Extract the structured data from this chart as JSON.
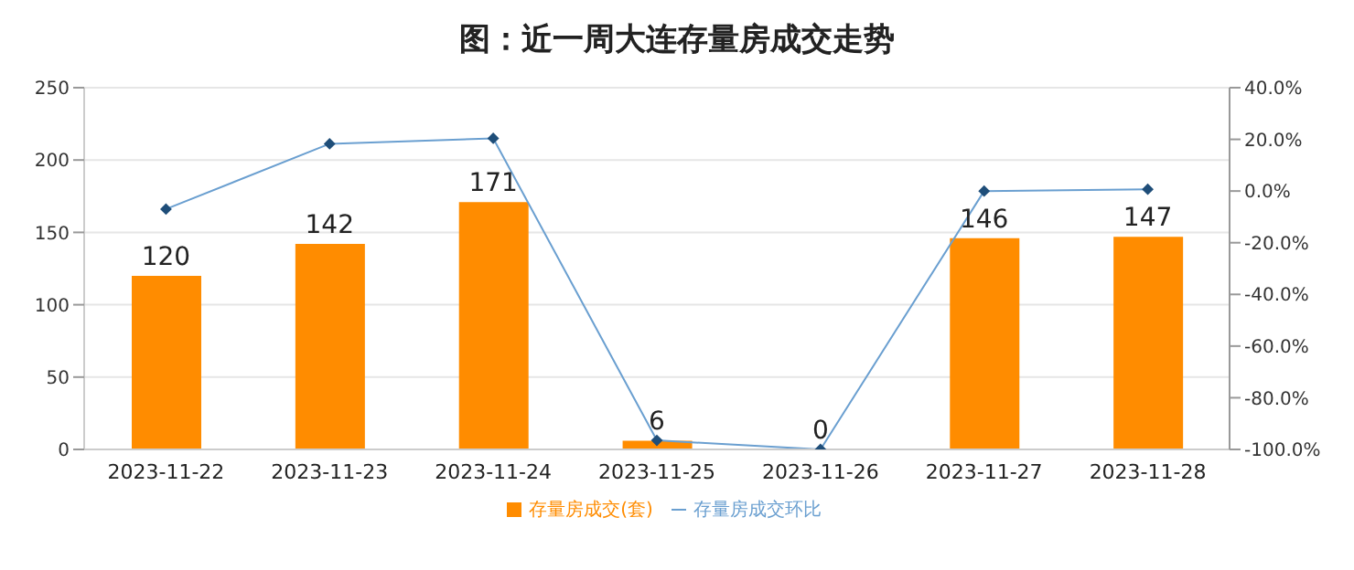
{
  "chart_data": {
    "type": "bar",
    "title": "图：近一周大连存量房成交走势",
    "categories": [
      "2023-11-22",
      "2023-11-23",
      "2023-11-24",
      "2023-11-25",
      "2023-11-26",
      "2023-11-27",
      "2023-11-28"
    ],
    "series": [
      {
        "name": "存量房成交(套)",
        "color": "#ff8c00",
        "values": [
          120,
          142,
          171,
          6,
          0,
          146,
          147
        ],
        "value_labels": [
          "120",
          "142",
          "171",
          "6",
          "0",
          "146",
          "147"
        ]
      },
      {
        "name": "存量房成交环比",
        "type": "line",
        "axis": "y2",
        "color": "#6a9fd0",
        "values": [
          -7,
          18.3,
          20.4,
          -96.5,
          -100,
          0,
          0.7
        ]
      }
    ],
    "ylim": [
      0,
      250
    ],
    "yticks": [
      0,
      50,
      100,
      150,
      200,
      250
    ],
    "y2lim": [
      -100,
      40
    ],
    "y2ticks": [
      {
        "value": -100,
        "label": "-100.0%"
      },
      {
        "value": -80,
        "label": "-80.0%"
      },
      {
        "value": -60,
        "label": "-60.0%"
      },
      {
        "value": -40,
        "label": "-40.0%"
      },
      {
        "value": -20,
        "label": "-20.0%"
      },
      {
        "value": 0,
        "label": "0.0%"
      },
      {
        "value": 20,
        "label": "20.0%"
      },
      {
        "value": 40,
        "label": "40.0%"
      }
    ],
    "grid": "y",
    "legend": "bottom",
    "marker": "diamond",
    "line_style": "solid"
  }
}
